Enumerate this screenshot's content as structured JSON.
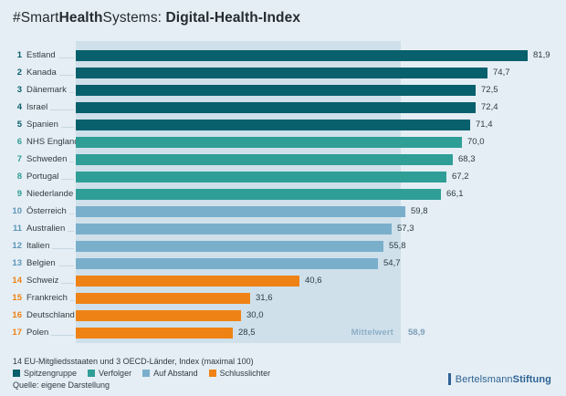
{
  "title": {
    "parts": [
      {
        "text": "#Smart",
        "bold": false
      },
      {
        "text": "Health",
        "bold": true
      },
      {
        "text": "Systems: ",
        "bold": false
      },
      {
        "text": "Digital-Health-Index",
        "bold": true
      }
    ],
    "full": "#SmartHealthSystems: Digital-Health-Index"
  },
  "chart_data": {
    "type": "bar",
    "orientation": "horizontal",
    "title": "#SmartHealthSystems: Digital-Health-Index",
    "xlim": [
      0,
      100
    ],
    "grid": false,
    "legend_position": "bottom",
    "categories": [
      "Estland",
      "Kanada",
      "Dänemark",
      "Israel",
      "Spanien",
      "NHS England",
      "Schweden",
      "Portugal",
      "Niederlande",
      "Österreich",
      "Australien",
      "Italien",
      "Belgien",
      "Schweiz",
      "Frankreich",
      "Deutschland",
      "Polen"
    ],
    "values": [
      81.9,
      74.7,
      72.5,
      72.4,
      71.4,
      70.0,
      68.3,
      67.2,
      66.1,
      59.8,
      57.3,
      55.8,
      54.7,
      40.6,
      31.6,
      30.0,
      28.5
    ],
    "rows": [
      {
        "rank": "1",
        "label": "Estland",
        "value": 81.9,
        "display": "81,9",
        "group": "spitzengruppe"
      },
      {
        "rank": "2",
        "label": "Kanada",
        "value": 74.7,
        "display": "74,7",
        "group": "spitzengruppe"
      },
      {
        "rank": "3",
        "label": "Dänemark",
        "value": 72.5,
        "display": "72,5",
        "group": "spitzengruppe"
      },
      {
        "rank": "4",
        "label": "Israel",
        "value": 72.4,
        "display": "72,4",
        "group": "spitzengruppe"
      },
      {
        "rank": "5",
        "label": "Spanien",
        "value": 71.4,
        "display": "71,4",
        "group": "spitzengruppe"
      },
      {
        "rank": "6",
        "label": "NHS England",
        "value": 70.0,
        "display": "70,0",
        "group": "verfolger"
      },
      {
        "rank": "7",
        "label": "Schweden",
        "value": 68.3,
        "display": "68,3",
        "group": "verfolger"
      },
      {
        "rank": "8",
        "label": "Portugal",
        "value": 67.2,
        "display": "67,2",
        "group": "verfolger"
      },
      {
        "rank": "9",
        "label": "Niederlande",
        "value": 66.1,
        "display": "66,1",
        "group": "verfolger"
      },
      {
        "rank": "10",
        "label": "Österreich",
        "value": 59.8,
        "display": "59,8",
        "group": "auf_abstand"
      },
      {
        "rank": "11",
        "label": "Australien",
        "value": 57.3,
        "display": "57,3",
        "group": "auf_abstand"
      },
      {
        "rank": "12",
        "label": "Italien",
        "value": 55.8,
        "display": "55,8",
        "group": "auf_abstand"
      },
      {
        "rank": "13",
        "label": "Belgien",
        "value": 54.7,
        "display": "54,7",
        "group": "auf_abstand"
      },
      {
        "rank": "14",
        "label": "Schweiz",
        "value": 40.6,
        "display": "40,6",
        "group": "schlusslichter"
      },
      {
        "rank": "15",
        "label": "Frankreich",
        "value": 31.6,
        "display": "31,6",
        "group": "schlusslichter"
      },
      {
        "rank": "16",
        "label": "Deutschland",
        "value": 30.0,
        "display": "30,0",
        "group": "schlusslichter"
      },
      {
        "rank": "17",
        "label": "Polen",
        "value": 28.5,
        "display": "28,5",
        "group": "schlusslichter"
      }
    ],
    "mean": {
      "label": "Mittelwert",
      "value": 58.9,
      "display": "58,9"
    }
  },
  "colors": {
    "background": "#e5eef4",
    "mean_band": "#cfe0ea",
    "groups": {
      "spitzengruppe": "#07606c",
      "verfolger": "#2f9e97",
      "auf_abstand": "#7aafcc",
      "schlusslichter": "#ef8214"
    },
    "rank_text": {
      "spitzengruppe": "#07606c",
      "verfolger": "#2f9e97",
      "auf_abstand": "#5f96ba",
      "schlusslichter": "#ef8214"
    },
    "logo": "#2d6294"
  },
  "legend": {
    "items": [
      {
        "label": "Spitzengruppe",
        "group": "spitzengruppe"
      },
      {
        "label": "Verfolger",
        "group": "verfolger"
      },
      {
        "label": "Auf Abstand",
        "group": "auf_abstand"
      },
      {
        "label": "Schlusslichter",
        "group": "schlusslichter"
      }
    ]
  },
  "footer": {
    "note": "14 EU-Mitgliedsstaaten und 3 OECD-Länder, Index (maximal 100)",
    "source": "Quelle: eigene Darstellung"
  },
  "logo": {
    "prefix": "Bertelsmann",
    "suffix": "Stiftung"
  }
}
